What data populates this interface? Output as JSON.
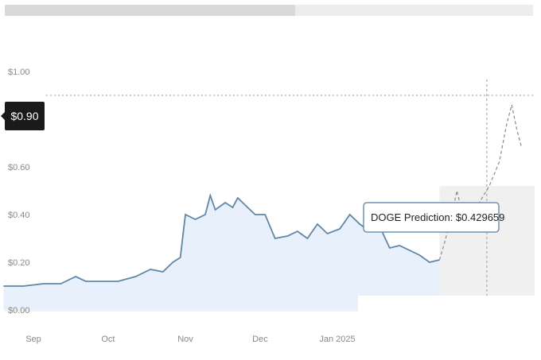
{
  "header": {
    "progress_fraction": 0.55
  },
  "colors": {
    "line": "#5f87a8",
    "area": "#e8f0fb",
    "prediction_area": "#f0f0f0",
    "current_label_bg": "#1a1a1a",
    "tooltip_border": "#6f93b3"
  },
  "chart_data": {
    "type": "line",
    "title": "",
    "xlabel": "",
    "ylabel": "",
    "ylim": [
      0,
      1.0
    ],
    "y_ticks": [
      {
        "value": 0.0,
        "label": "$0.00"
      },
      {
        "value": 0.2,
        "label": "$0.20"
      },
      {
        "value": 0.4,
        "label": "$0.40"
      },
      {
        "value": 0.6,
        "label": "$0.60"
      },
      {
        "value": 1.0,
        "label": "$1.00"
      }
    ],
    "x_ticks": [
      {
        "x": "2024-09-01",
        "label": "Sep"
      },
      {
        "x": "2024-10-01",
        "label": "Oct"
      },
      {
        "x": "2024-11-01",
        "label": "Nov"
      },
      {
        "x": "2024-12-01",
        "label": "Dec"
      },
      {
        "x": "2025-01-01",
        "label": "Jan 2025"
      }
    ],
    "current_marker": {
      "value": 0.9,
      "label": "$0.90"
    },
    "tooltip": {
      "text": "DOGE Prediction: $0.429659",
      "value": 0.429659
    },
    "series": [
      {
        "values": [
          [
            "2024-08-20",
            0.1
          ],
          [
            "2024-08-28",
            0.1
          ],
          [
            "2024-09-05",
            0.11
          ],
          [
            "2024-09-12",
            0.11
          ],
          [
            "2024-09-18",
            0.14
          ],
          [
            "2024-09-22",
            0.12
          ],
          [
            "2024-09-28",
            0.12
          ],
          [
            "2024-10-05",
            0.12
          ],
          [
            "2024-10-12",
            0.14
          ],
          [
            "2024-10-18",
            0.17
          ],
          [
            "2024-10-23",
            0.16
          ],
          [
            "2024-10-27",
            0.2
          ],
          [
            "2024-10-30",
            0.22
          ],
          [
            "2024-11-01",
            0.4
          ],
          [
            "2024-11-05",
            0.38
          ],
          [
            "2024-11-09",
            0.4
          ],
          [
            "2024-11-11",
            0.48
          ],
          [
            "2024-11-13",
            0.42
          ],
          [
            "2024-11-17",
            0.45
          ],
          [
            "2024-11-20",
            0.43
          ],
          [
            "2024-11-22",
            0.47
          ],
          [
            "2024-11-25",
            0.44
          ],
          [
            "2024-11-29",
            0.4
          ],
          [
            "2024-12-03",
            0.4
          ],
          [
            "2024-12-07",
            0.3
          ],
          [
            "2024-12-12",
            0.31
          ],
          [
            "2024-12-16",
            0.33
          ],
          [
            "2024-12-20",
            0.3
          ],
          [
            "2024-12-24",
            0.36
          ],
          [
            "2024-12-28",
            0.32
          ],
          [
            "2025-01-02",
            0.34
          ],
          [
            "2025-01-06",
            0.4
          ],
          [
            "2025-01-10",
            0.36
          ],
          [
            "2025-01-14",
            0.33
          ],
          [
            "2025-01-18",
            0.35
          ],
          [
            "2025-01-22",
            0.26
          ],
          [
            "2025-01-26",
            0.27
          ],
          [
            "2025-01-30",
            0.25
          ],
          [
            "2025-02-03",
            0.23
          ],
          [
            "2025-02-07",
            0.2
          ],
          [
            "2025-02-11",
            0.21
          ]
        ]
      },
      {
        "name": "DOGE Prediction",
        "style": "dashed",
        "values": [
          [
            "2025-02-11",
            0.21
          ],
          [
            "2025-02-13",
            0.28
          ],
          [
            "2025-02-16",
            0.4
          ],
          [
            "2025-02-18",
            0.5
          ],
          [
            "2025-02-20",
            0.41
          ],
          [
            "2025-02-23",
            0.43
          ],
          [
            "2025-02-27",
            0.45
          ],
          [
            "2025-03-03",
            0.52
          ],
          [
            "2025-03-07",
            0.62
          ],
          [
            "2025-03-10",
            0.78
          ],
          [
            "2025-03-12",
            0.86
          ],
          [
            "2025-03-14",
            0.76
          ],
          [
            "2025-03-16",
            0.68
          ]
        ]
      }
    ],
    "prediction_start": "2025-02-11",
    "prediction_marker_x": "2025-03-02",
    "grid": false
  }
}
